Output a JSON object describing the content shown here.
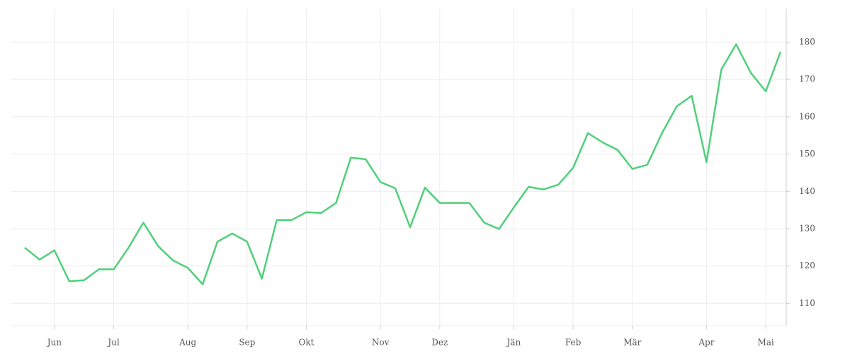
{
  "chart_data": {
    "type": "line",
    "categories": [
      null,
      null,
      "Jun",
      null,
      null,
      null,
      "Jul",
      null,
      null,
      null,
      null,
      "Aug",
      null,
      null,
      null,
      "Sep",
      null,
      null,
      null,
      "Okt",
      null,
      null,
      null,
      null,
      "Nov",
      null,
      null,
      null,
      "Dez",
      null,
      null,
      null,
      null,
      "Jän",
      null,
      null,
      null,
      "Feb",
      null,
      null,
      null,
      "Mär",
      null,
      null,
      null,
      null,
      "Apr",
      null,
      null,
      null,
      "Mai",
      null
    ],
    "series": [
      {
        "color": "#4fd07a",
        "values": [
          124.9,
          121.7,
          124.2,
          115.9,
          116.2,
          119.1,
          119.1,
          124.9,
          131.6,
          125.3,
          121.5,
          119.5,
          115.1,
          126.5,
          128.7,
          126.5,
          116.6,
          132.3,
          132.3,
          134.4,
          134.2,
          136.9,
          149.0,
          148.6,
          142.5,
          140.8,
          130.4,
          141.0,
          136.9,
          136.9,
          136.9,
          131.6,
          129.9,
          135.7,
          141.2,
          140.5,
          141.8,
          146.3,
          155.6,
          153.1,
          151.1,
          146.0,
          147.1,
          155.6,
          162.8,
          165.6,
          147.8,
          172.6,
          179.4,
          171.7,
          166.8,
          177.4
        ]
      }
    ],
    "ylim": [
      104,
      189
    ],
    "yticks": [
      110,
      120,
      130,
      140,
      150,
      160,
      170,
      180
    ],
    "grid": true
  }
}
